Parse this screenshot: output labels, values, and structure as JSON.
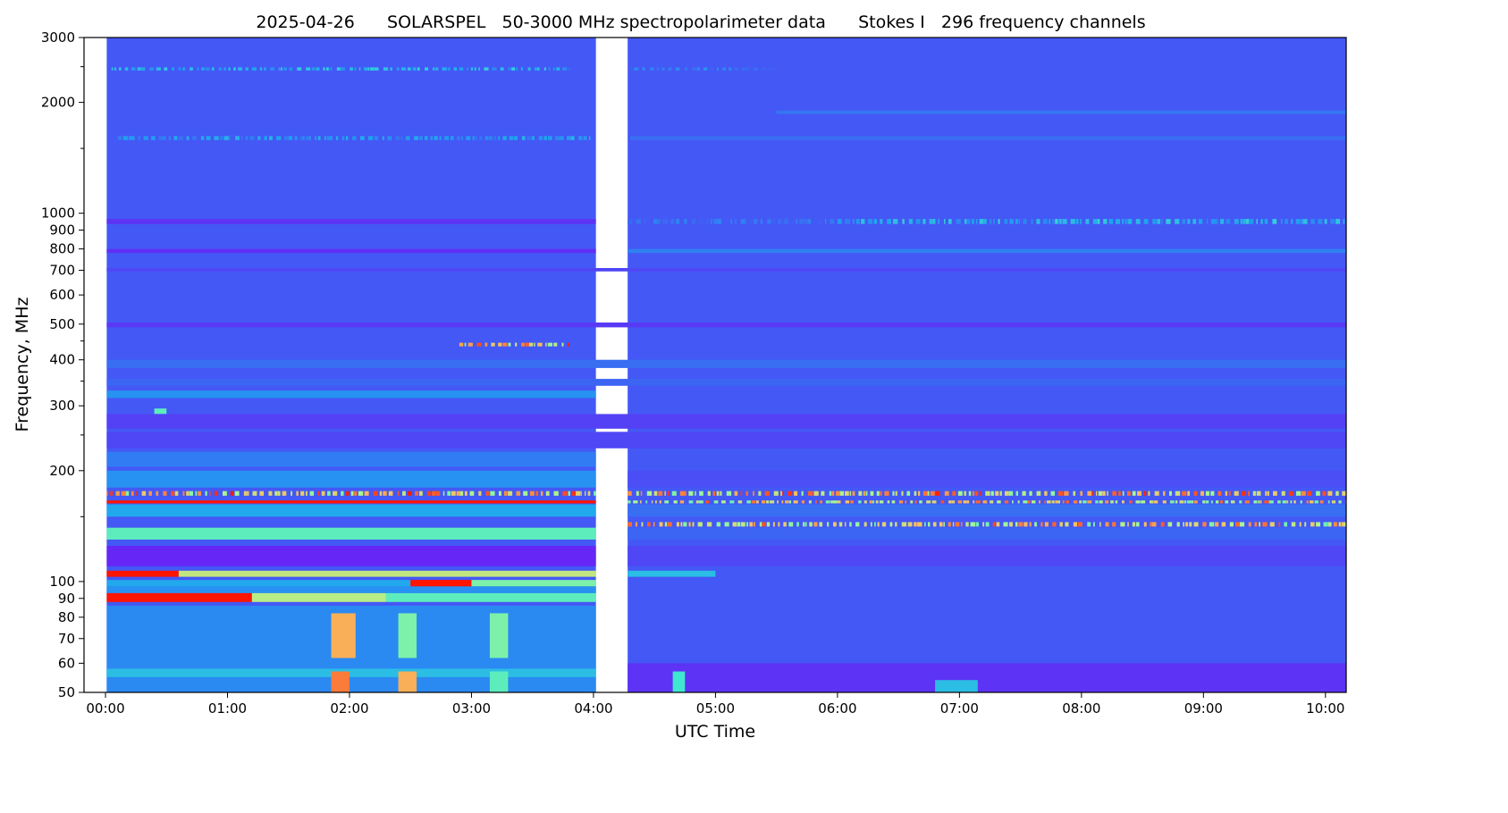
{
  "chart_data": {
    "type": "heatmap",
    "title": "2025-04-26      SOLARSPEL   50-3000 MHz spectropolarimeter data      Stokes I   296 frequency channels",
    "xlabel": "UTC Time",
    "ylabel": "Frequency, MHz",
    "xlim_hours": [
      -0.176,
      10.17
    ],
    "ylim": [
      50,
      3000
    ],
    "yscale": "log",
    "x_ticks": [
      {
        "h": 0,
        "label": "00:00"
      },
      {
        "h": 1,
        "label": "01:00"
      },
      {
        "h": 2,
        "label": "02:00"
      },
      {
        "h": 3,
        "label": "03:00"
      },
      {
        "h": 4,
        "label": "04:00"
      },
      {
        "h": 5,
        "label": "05:00"
      },
      {
        "h": 6,
        "label": "06:00"
      },
      {
        "h": 7,
        "label": "07:00"
      },
      {
        "h": 8,
        "label": "08:00"
      },
      {
        "h": 9,
        "label": "09:00"
      },
      {
        "h": 10,
        "label": "10:00"
      }
    ],
    "y_ticks": [
      {
        "f": 50,
        "label": "50"
      },
      {
        "f": 60,
        "label": "60"
      },
      {
        "f": 70,
        "label": "70"
      },
      {
        "f": 80,
        "label": "80"
      },
      {
        "f": 90,
        "label": "90"
      },
      {
        "f": 100,
        "label": "100"
      },
      {
        "f": 200,
        "label": "200"
      },
      {
        "f": 300,
        "label": "300"
      },
      {
        "f": 400,
        "label": "400"
      },
      {
        "f": 500,
        "label": "500"
      },
      {
        "f": 600,
        "label": "600"
      },
      {
        "f": 700,
        "label": "700"
      },
      {
        "f": 800,
        "label": "800"
      },
      {
        "f": 900,
        "label": "900"
      },
      {
        "f": 1000,
        "label": "1000"
      },
      {
        "f": 2000,
        "label": "2000"
      },
      {
        "f": 3000,
        "label": "3000"
      }
    ],
    "y_minor_ticks": [
      150,
      250,
      350,
      450,
      1500,
      2500
    ],
    "colormap": [
      "#6a1ff5",
      "#4458f5",
      "#1fa2f0",
      "#3fe8d0",
      "#a8f890",
      "#f8c060",
      "#ff1400"
    ],
    "background_level": 0.17,
    "sessions": [
      {
        "start_h": 0.01,
        "end_h": 4.02
      },
      {
        "start_h": 4.28,
        "end_h": 10.17
      }
    ],
    "features": [
      {
        "f": [
          2440,
          2490
        ],
        "t": [
          0.05,
          3.8
        ],
        "level": 0.45,
        "dotted": true
      },
      {
        "f": [
          2440,
          2490
        ],
        "t": [
          4.3,
          5.5
        ],
        "level": 0.3,
        "dotted": true
      },
      {
        "f": [
          1580,
          1620
        ],
        "t": [
          0.1,
          4.0
        ],
        "level": 0.38,
        "dotted": true
      },
      {
        "f": [
          1580,
          1620
        ],
        "t": [
          4.3,
          10.17
        ],
        "level": 0.22
      },
      {
        "f": [
          1860,
          1900
        ],
        "t": [
          5.5,
          10.17
        ],
        "level": 0.24
      },
      {
        "f": [
          935,
          965
        ],
        "t": [
          0.01,
          4.02
        ],
        "level": 0.06
      },
      {
        "f": [
          935,
          965
        ],
        "t": [
          4.28,
          6.0
        ],
        "level": 0.28,
        "dotted": true
      },
      {
        "f": [
          935,
          965
        ],
        "t": [
          6.0,
          10.17
        ],
        "level": 0.45,
        "dotted": true
      },
      {
        "f": [
          780,
          800
        ],
        "t": [
          0.01,
          4.02
        ],
        "level": 0.05
      },
      {
        "f": [
          780,
          800
        ],
        "t": [
          4.28,
          10.17
        ],
        "level": 0.26
      },
      {
        "f": [
          695,
          710
        ],
        "t": [
          0.01,
          10.17
        ],
        "level": 0.12
      },
      {
        "f": [
          490,
          505
        ],
        "t": [
          0.01,
          10.17
        ],
        "level": 0.08
      },
      {
        "f": [
          435,
          445
        ],
        "t": [
          2.9,
          3.8
        ],
        "level": 1.0,
        "dotted": true
      },
      {
        "f": [
          380,
          400
        ],
        "t": [
          0.01,
          10.17
        ],
        "level": 0.22
      },
      {
        "f": [
          340,
          355
        ],
        "t": [
          0.01,
          10.17
        ],
        "level": 0.2
      },
      {
        "f": [
          315,
          330
        ],
        "t": [
          0.01,
          4.02
        ],
        "level": 0.3
      },
      {
        "f": [
          285,
          295
        ],
        "t": [
          0.4,
          0.5
        ],
        "level": 0.55
      },
      {
        "f": [
          260,
          285
        ],
        "t": [
          0.01,
          10.17
        ],
        "level": 0.1
      },
      {
        "f": [
          230,
          255
        ],
        "t": [
          0.01,
          10.17
        ],
        "level": 0.12
      },
      {
        "f": [
          205,
          225
        ],
        "t": [
          0.01,
          4.02
        ],
        "level": 0.25
      },
      {
        "f": [
          180,
          200
        ],
        "t": [
          0.01,
          4.02
        ],
        "level": 0.3
      },
      {
        "f": [
          180,
          200
        ],
        "t": [
          4.28,
          10.17
        ],
        "level": 0.14
      },
      {
        "f": [
          171,
          176
        ],
        "t": [
          0.01,
          4.02
        ],
        "level": 1.0,
        "dotted": true
      },
      {
        "f": [
          171,
          176
        ],
        "t": [
          4.28,
          10.17
        ],
        "level": 1.0,
        "dotted": true
      },
      {
        "f": [
          163,
          166
        ],
        "t": [
          0.01,
          4.02
        ],
        "level": 1.0
      },
      {
        "f": [
          163,
          166
        ],
        "t": [
          4.28,
          10.17
        ],
        "level": 0.95,
        "dotted": true
      },
      {
        "f": [
          150,
          162
        ],
        "t": [
          0.01,
          4.02
        ],
        "level": 0.35
      },
      {
        "f": [
          150,
          162
        ],
        "t": [
          4.28,
          10.17
        ],
        "level": 0.22
      },
      {
        "f": [
          141,
          145
        ],
        "t": [
          4.28,
          10.17
        ],
        "level": 0.95,
        "dotted": true
      },
      {
        "f": [
          130,
          140
        ],
        "t": [
          0.01,
          4.02
        ],
        "level": 0.55
      },
      {
        "f": [
          130,
          140
        ],
        "t": [
          4.28,
          10.17
        ],
        "level": 0.2
      },
      {
        "f": [
          110,
          125
        ],
        "t": [
          0.01,
          4.02
        ],
        "level": 0.02
      },
      {
        "f": [
          110,
          125
        ],
        "t": [
          4.28,
          10.17
        ],
        "level": 0.12
      },
      {
        "f": [
          103,
          107
        ],
        "t": [
          0.01,
          0.6
        ],
        "level": 1.0
      },
      {
        "f": [
          103,
          107
        ],
        "t": [
          0.6,
          4.02
        ],
        "level": 0.72
      },
      {
        "f": [
          103,
          107
        ],
        "t": [
          4.28,
          5.0
        ],
        "level": 0.4
      },
      {
        "f": [
          97,
          101
        ],
        "t": [
          0.01,
          2.5
        ],
        "level": 0.35
      },
      {
        "f": [
          97,
          101
        ],
        "t": [
          2.5,
          3.0
        ],
        "level": 1.0
      },
      {
        "f": [
          97,
          101
        ],
        "t": [
          3.0,
          4.02
        ],
        "level": 0.6
      },
      {
        "f": [
          93,
          97
        ],
        "t": [
          0.01,
          4.02
        ],
        "level": 0.3
      },
      {
        "f": [
          88,
          93
        ],
        "t": [
          0.01,
          1.2
        ],
        "level": 1.0
      },
      {
        "f": [
          88,
          93
        ],
        "t": [
          1.2,
          2.3
        ],
        "level": 0.7
      },
      {
        "f": [
          88,
          93
        ],
        "t": [
          2.3,
          4.02
        ],
        "level": 0.55
      },
      {
        "f": [
          50,
          86
        ],
        "t": [
          0.01,
          4.02
        ],
        "level": 0.28
      },
      {
        "f": [
          55,
          58
        ],
        "t": [
          0.01,
          4.02
        ],
        "level": 0.4
      },
      {
        "f": [
          62,
          82
        ],
        "t": [
          1.85,
          2.05
        ],
        "level": 0.85
      },
      {
        "f": [
          50,
          57
        ],
        "t": [
          1.85,
          2.0
        ],
        "level": 0.9
      },
      {
        "f": [
          62,
          82
        ],
        "t": [
          2.4,
          2.55
        ],
        "level": 0.6
      },
      {
        "f": [
          50,
          57
        ],
        "t": [
          2.4,
          2.55
        ],
        "level": 0.85
      },
      {
        "f": [
          62,
          82
        ],
        "t": [
          3.15,
          3.3
        ],
        "level": 0.6
      },
      {
        "f": [
          50,
          57
        ],
        "t": [
          3.15,
          3.3
        ],
        "level": 0.55
      },
      {
        "f": [
          50,
          60
        ],
        "t": [
          4.28,
          10.17
        ],
        "level": 0.06
      },
      {
        "f": [
          50,
          57
        ],
        "t": [
          4.65,
          4.75
        ],
        "level": 0.5
      },
      {
        "f": [
          50,
          54
        ],
        "t": [
          6.8,
          7.15
        ],
        "level": 0.4
      }
    ]
  }
}
